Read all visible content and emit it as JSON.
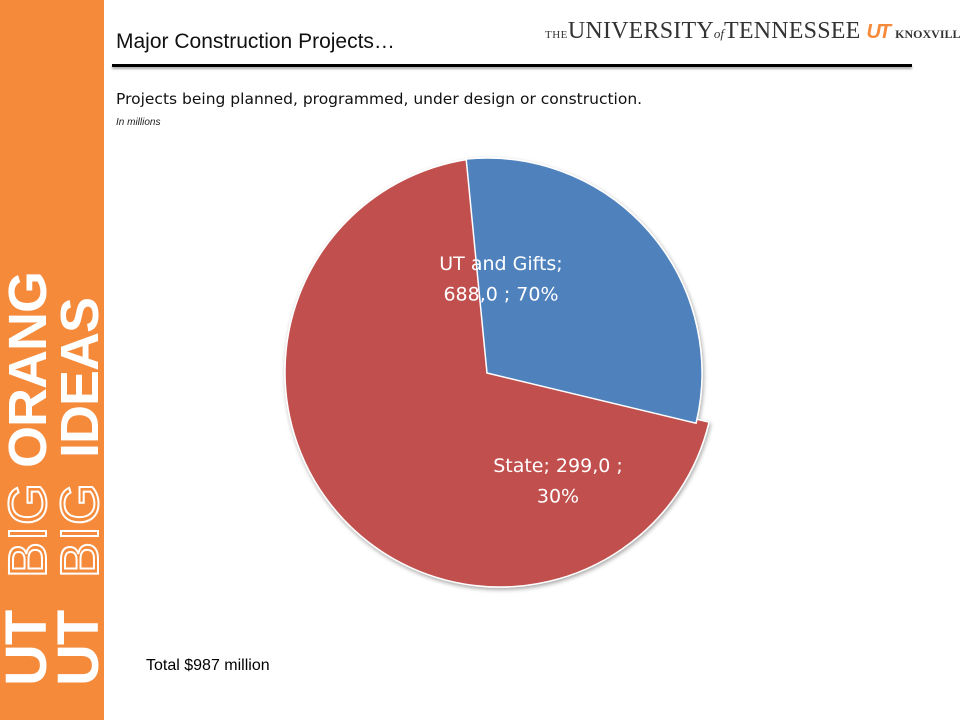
{
  "header": {
    "title": "Major Construction Projects…",
    "logo_text": {
      "the": "THE",
      "university": "UNIVERSITY",
      "of": "of",
      "tennessee": "TENNESSEE",
      "ut": "UT",
      "knoxville": "KNOXVILLE"
    }
  },
  "sidebar": {
    "brand_text": "BIG ORANGE BIG IDEAS",
    "color": "#F58A3A"
  },
  "subtitle": "Projects being planned, programmed, under design or construction.",
  "units_note": "In millions",
  "footer": {
    "total": "Total $987 million"
  },
  "chart_data": {
    "type": "pie",
    "title": "",
    "slices": [
      {
        "name": "UT and Gifts",
        "value": 688.0,
        "percent": 70,
        "color": "#C0504D",
        "label_lines": [
          "UT and Gifts;",
          "688,0 ; 70%"
        ]
      },
      {
        "name": "State",
        "value": 299.0,
        "percent": 30,
        "color": "#4F81BD",
        "label_lines": [
          "State;  299,0 ;",
          "30%"
        ]
      }
    ],
    "legend": "none",
    "data_labels": "inside"
  }
}
